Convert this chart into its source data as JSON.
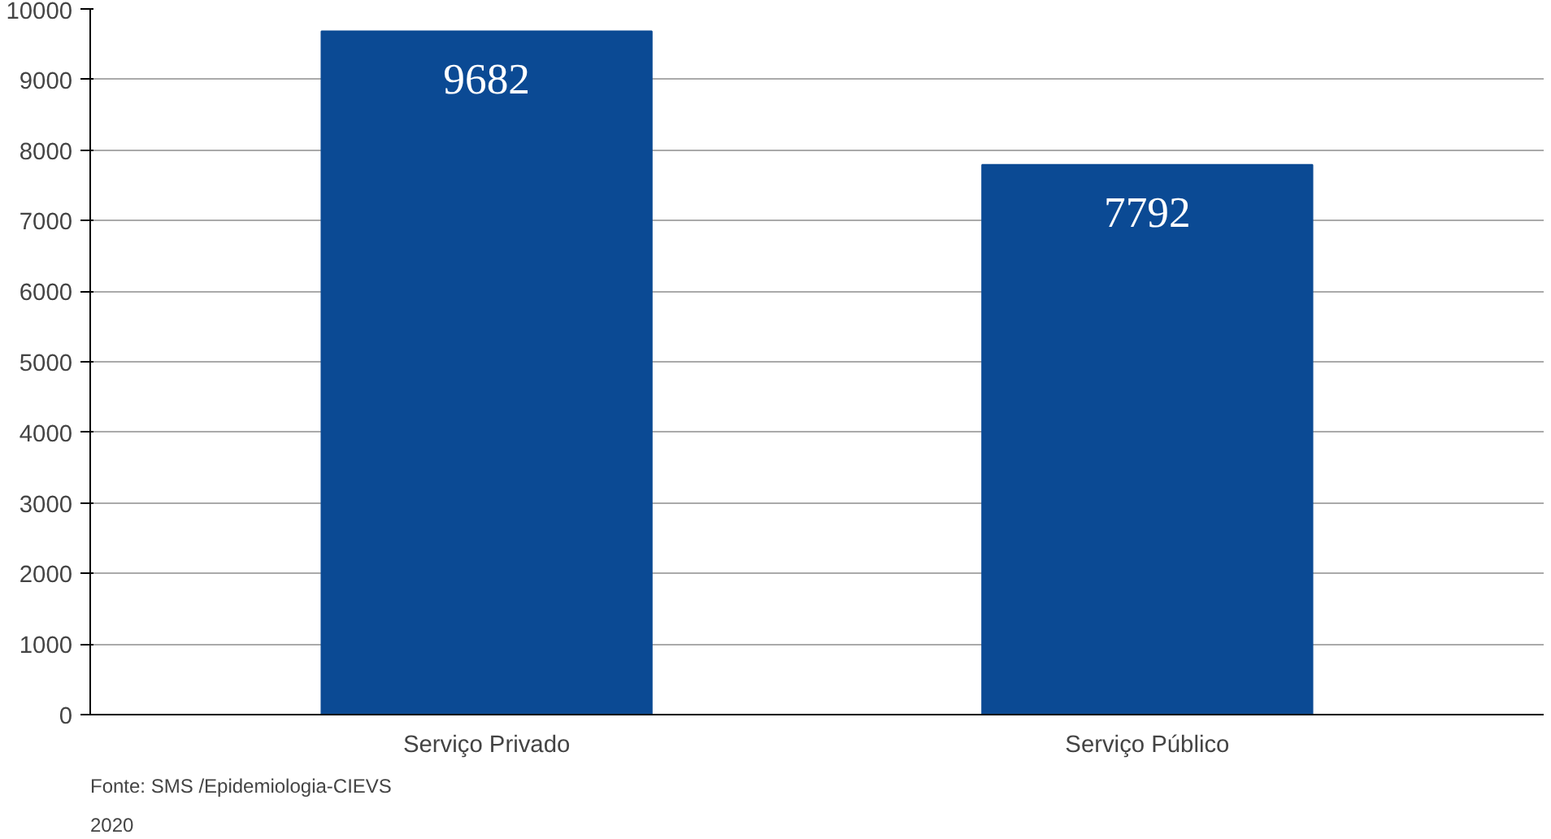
{
  "chart_data": {
    "type": "bar",
    "categories": [
      "Serviço Privado",
      "Serviço Público"
    ],
    "values": [
      9682,
      7792
    ],
    "color": "#0b4a94",
    "ylim": [
      0,
      10000
    ],
    "yticks": [
      0,
      1000,
      2000,
      3000,
      4000,
      5000,
      6000,
      7000,
      8000,
      9000,
      10000
    ],
    "grid": "y",
    "data_labels": true,
    "annotations": [
      "Fonte: SMS /Epidemiologia-CIEVS",
      "2020"
    ]
  }
}
